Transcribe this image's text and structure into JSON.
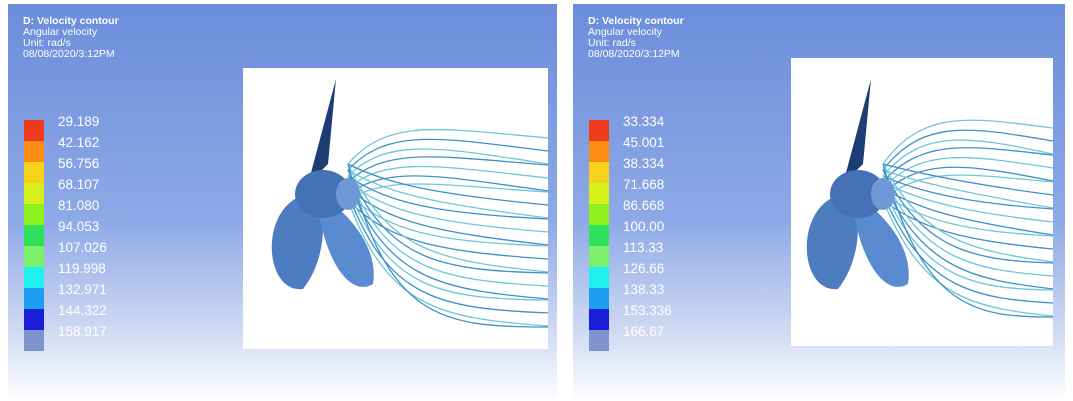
{
  "panels": [
    {
      "title": "D: Velocity contour",
      "lines": [
        "Angular velocity",
        "Unit: rad/s",
        "08/08/2020/3:12PM"
      ],
      "legend": {
        "labels": [
          "29.189",
          "42.162",
          "56.756",
          "68.107",
          "81.080",
          "94.053",
          "107.026",
          "119.998",
          "132.971",
          "144.322",
          "158.917"
        ],
        "colors": [
          "#f03a1e",
          "#fb8c14",
          "#f7d21a",
          "#d6f01c",
          "#8ef01e",
          "#2ee05a",
          "#7cf06a",
          "#1ef0f0",
          "#1e9ef0",
          "#1a1ed8",
          "#7f93cc"
        ]
      }
    },
    {
      "title": "D: Velocity contour",
      "lines": [
        "Angular velocity",
        "Unit: rad/s",
        "08/08/2020/3:12PM"
      ],
      "legend": {
        "labels": [
          "33.334",
          "45.001",
          "38.334",
          "71.668",
          "86.668",
          "100.00",
          "113.33",
          "126.66",
          "138.33",
          "153.336",
          "166.67"
        ],
        "colors": [
          "#f03a1e",
          "#fb8c14",
          "#f7d21a",
          "#d6f01c",
          "#8ef01e",
          "#2ee05a",
          "#7cf06a",
          "#1ef0f0",
          "#1e9ef0",
          "#1a1ed8",
          "#7f93cc"
        ]
      }
    }
  ]
}
